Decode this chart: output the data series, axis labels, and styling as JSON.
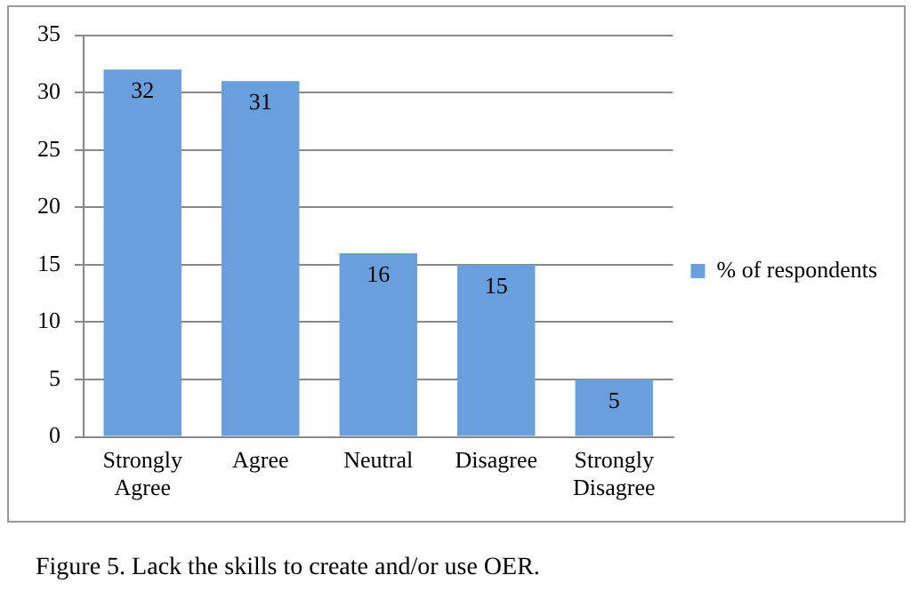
{
  "chart_data": {
    "type": "bar",
    "categories": [
      "Strongly Agree",
      "Agree",
      "Neutral",
      "Disagree",
      "Strongly Disagree"
    ],
    "series": [
      {
        "name": "% of respondents",
        "color": "#6a9fdd",
        "values": [
          32,
          31,
          16,
          15,
          5
        ]
      }
    ],
    "ylim": [
      0,
      35
    ],
    "yticks": [
      0,
      5,
      10,
      15,
      20,
      25,
      30,
      35
    ],
    "grid": "y",
    "legend": "right",
    "data_labels": true,
    "annotations": [
      "Figure 5. Lack the skills to create and/or use OER."
    ]
  }
}
